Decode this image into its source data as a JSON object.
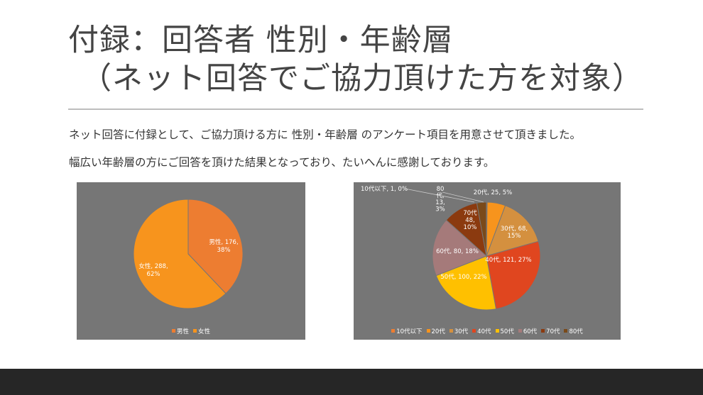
{
  "slide": {
    "title_line1": "付録：回答者 性別・年齢層",
    "title_line2": "（ネット回答でご協力頂けた方を対象）",
    "paragraph1": "ネット回答に付録として、ご協力頂ける方に 性別・年齢層 のアンケート項目を用意させて頂きました。",
    "paragraph2": "幅広い年齢層の方にご回答を頂けた結果となっており、たいへんに感謝しております。"
  },
  "chart_data": [
    {
      "type": "pie",
      "categories": [
        "男性",
        "女性"
      ],
      "values": [
        176,
        288
      ],
      "percentages": [
        38,
        62
      ],
      "data_labels": [
        "男性, 176, 38%",
        "女性, 288, 62%"
      ],
      "colors": [
        "#ED7D31",
        "#F7941D"
      ],
      "legend": "bottom"
    },
    {
      "type": "pie",
      "categories": [
        "10代以下",
        "20代",
        "30代",
        "40代",
        "50代",
        "60代",
        "70代",
        "80代"
      ],
      "values": [
        1,
        25,
        68,
        121,
        100,
        80,
        48,
        13
      ],
      "percentages": [
        0,
        5,
        15,
        27,
        22,
        18,
        10,
        3
      ],
      "data_labels": [
        "10代以下, 1, 0%",
        "20代, 25, 5%",
        "30代, 68, 15%",
        "40代, 121, 27%",
        "50代, 100, 22%",
        "60代, 80, 18%",
        "70代, 48, 10%",
        "80代, 13, 3%"
      ],
      "colors": [
        "#ED7D31",
        "#F7941D",
        "#D4903F",
        "#E0461F",
        "#FFC000",
        "#A57A7A",
        "#8B3A0F",
        "#7A4A1A"
      ],
      "legend": "bottom"
    }
  ]
}
